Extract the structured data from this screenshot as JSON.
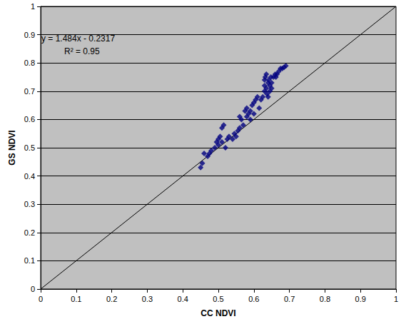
{
  "chart_data": {
    "type": "scatter",
    "x_label": "CC NDVI",
    "y_label": "GS NDVI",
    "annotations": [
      "y = 1.484x - 0.2317",
      "R² = 0.95"
    ],
    "xlim": [
      0,
      1
    ],
    "ylim": [
      0,
      1
    ],
    "xticks": [
      0,
      0.1,
      0.2,
      0.3,
      0.4,
      0.5,
      0.6,
      0.7,
      0.8,
      0.9,
      1
    ],
    "yticks": [
      0,
      0.1,
      0.2,
      0.3,
      0.4,
      0.5,
      0.6,
      0.7,
      0.8,
      0.9,
      1
    ],
    "grid": "y",
    "series": [
      {
        "type": "scatter",
        "color": "#000080",
        "marker": "diamond",
        "x": [
          0.45,
          0.455,
          0.46,
          0.47,
          0.475,
          0.48,
          0.49,
          0.495,
          0.5,
          0.5,
          0.505,
          0.51,
          0.51,
          0.515,
          0.52,
          0.525,
          0.53,
          0.54,
          0.545,
          0.55,
          0.555,
          0.56,
          0.56,
          0.565,
          0.57,
          0.575,
          0.58,
          0.58,
          0.585,
          0.59,
          0.59,
          0.595,
          0.6,
          0.6,
          0.605,
          0.61,
          0.615,
          0.62,
          0.625,
          0.63,
          0.63,
          0.63,
          0.632,
          0.635,
          0.635,
          0.637,
          0.64,
          0.64,
          0.642,
          0.645,
          0.645,
          0.648,
          0.65,
          0.65,
          0.655,
          0.66,
          0.662,
          0.665,
          0.67,
          0.675,
          0.68,
          0.685,
          0.69
        ],
        "values": [
          0.43,
          0.445,
          0.48,
          0.47,
          0.48,
          0.49,
          0.5,
          0.52,
          0.51,
          0.53,
          0.54,
          0.52,
          0.57,
          0.58,
          0.5,
          0.53,
          0.54,
          0.53,
          0.55,
          0.54,
          0.56,
          0.61,
          0.57,
          0.6,
          0.58,
          0.63,
          0.61,
          0.64,
          0.62,
          0.6,
          0.63,
          0.65,
          0.62,
          0.66,
          0.67,
          0.68,
          0.64,
          0.67,
          0.68,
          0.7,
          0.72,
          0.74,
          0.75,
          0.76,
          0.71,
          0.69,
          0.73,
          0.68,
          0.74,
          0.7,
          0.72,
          0.75,
          0.71,
          0.73,
          0.75,
          0.76,
          0.75,
          0.76,
          0.77,
          0.78,
          0.78,
          0.785,
          0.79
        ]
      },
      {
        "type": "line",
        "color": "#000000",
        "line_style": "solid",
        "x": [
          0,
          1
        ],
        "values": [
          0,
          1
        ]
      }
    ]
  }
}
